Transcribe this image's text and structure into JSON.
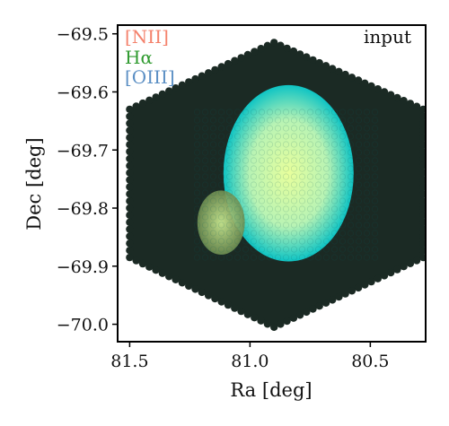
{
  "chart_data": {
    "type": "heatmap",
    "panel_label": "input",
    "xlabel": "Ra [deg]",
    "ylabel": "Dec [deg]",
    "xlim": [
      81.55,
      80.27
    ],
    "ylim": [
      -70.03,
      -69.485
    ],
    "x_ticks": [
      81.5,
      81.0,
      80.5
    ],
    "x_tick_labels": [
      "81.5",
      "81.0",
      "80.5"
    ],
    "y_ticks": [
      -69.5,
      -69.6,
      -69.7,
      -69.8,
      -69.9,
      -70.0
    ],
    "y_tick_labels": [
      "−69.5",
      "−69.6",
      "−69.7",
      "−69.8",
      "−69.9",
      "−70.0"
    ],
    "legend": [
      {
        "label": "[NII]",
        "color": "#f4826c"
      },
      {
        "label": "Hα",
        "color": "#2e9a2e"
      },
      {
        "label": "[OIII]",
        "color": "#5b8fc4"
      }
    ],
    "field_of_view": {
      "shape": "hexagon",
      "fill_color": "#1b2a24",
      "vertices": [
        [
          80.9,
          -69.515
        ],
        [
          80.28,
          -69.63
        ],
        [
          80.28,
          -69.885
        ],
        [
          80.9,
          -70.005
        ],
        [
          81.5,
          -69.885
        ],
        [
          81.5,
          -69.63
        ]
      ]
    },
    "emission_regions": [
      {
        "name": "large nebula",
        "center": [
          80.84,
          -69.74
        ],
        "radius_deg": 0.33,
        "edge_color": "#0fc4c4",
        "core_color": "#e8ff9c"
      },
      {
        "name": "small knot",
        "center": [
          81.12,
          -69.825
        ],
        "radius_deg": 0.12,
        "edge_color": "#6f8f52",
        "core_color": "#c9e88f"
      }
    ]
  }
}
